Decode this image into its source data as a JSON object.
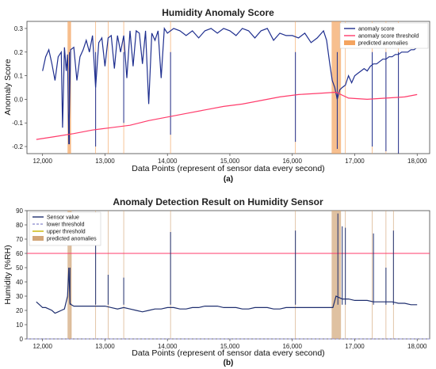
{
  "chart_data": [
    {
      "type": "line",
      "panel_label": "(a)",
      "title": "Humidity Anomaly Score",
      "xlabel": "Data Points (represent of sensor data every second)",
      "ylabel": "Anomaly Score",
      "xlim": [
        11750,
        18200
      ],
      "ylim": [
        -0.23,
        0.33
      ],
      "xticks": [
        12000,
        13000,
        14000,
        15000,
        16000,
        17000,
        18000
      ],
      "xtick_labels": [
        "12,000",
        "13,000",
        "14,000",
        "15,000",
        "16,000",
        "17,000",
        "18,000"
      ],
      "yticks": [
        -0.2,
        -0.1,
        0.0,
        0.1,
        0.2,
        0.3
      ],
      "ytick_labels": [
        "-0.2",
        "-0.1",
        "0.0",
        "0.1",
        "0.2",
        "0.3"
      ],
      "legend": {
        "position": "top-right",
        "entries": [
          "anomaly score",
          "anomaly score threshold",
          "predicted anomalies"
        ]
      },
      "colors": {
        "score": "#1f2f8f",
        "threshold": "#ff3b6b",
        "anomaly": "#f4a460"
      },
      "series": [
        {
          "name": "anomaly score",
          "x": [
            12000,
            12050,
            12100,
            12150,
            12200,
            12250,
            12300,
            12320,
            12350,
            12380,
            12400,
            12420,
            12450,
            12500,
            12550,
            12600,
            12650,
            12700,
            12750,
            12800,
            12850,
            12900,
            12950,
            13000,
            13050,
            13100,
            13150,
            13200,
            13250,
            13300,
            13350,
            13400,
            13450,
            13500,
            13550,
            13600,
            13650,
            13700,
            13750,
            13800,
            13850,
            13900,
            13950,
            14000,
            14100,
            14200,
            14300,
            14400,
            14500,
            14600,
            14700,
            14800,
            14900,
            15000,
            15100,
            15200,
            15300,
            15400,
            15500,
            15600,
            15700,
            15800,
            15900,
            16000,
            16100,
            16200,
            16300,
            16400,
            16500,
            16550,
            16600,
            16640,
            16680,
            16720,
            16760,
            16800,
            16850,
            16900,
            16950,
            17000,
            17050,
            17100,
            17150,
            17200,
            17250,
            17300,
            17350,
            17400,
            17450,
            17500,
            17550,
            17600,
            17650,
            17700,
            17750,
            17800,
            17850,
            17900,
            17950,
            18000
          ],
          "y": [
            0.12,
            0.18,
            0.21,
            0.15,
            0.08,
            0.18,
            0.2,
            -0.12,
            0.22,
            0.12,
            0.19,
            -0.19,
            0.21,
            0.22,
            0.08,
            0.18,
            0.21,
            0.25,
            0.2,
            0.27,
            0.05,
            0.24,
            0.26,
            0.14,
            0.26,
            0.27,
            0.13,
            0.27,
            0.2,
            0.27,
            0.09,
            0.29,
            0.14,
            0.29,
            0.28,
            0.15,
            0.29,
            -0.02,
            0.28,
            0.25,
            0.29,
            0.09,
            0.3,
            0.28,
            0.3,
            0.29,
            0.27,
            0.29,
            0.26,
            0.29,
            0.3,
            0.28,
            0.3,
            0.29,
            0.27,
            0.3,
            0.29,
            0.26,
            0.29,
            0.3,
            0.25,
            0.28,
            0.27,
            0.27,
            0.26,
            0.28,
            0.24,
            0.26,
            0.29,
            0.25,
            0.15,
            0.08,
            0.05,
            0.0,
            0.04,
            0.05,
            0.06,
            0.1,
            0.07,
            0.1,
            0.11,
            0.12,
            0.13,
            0.12,
            0.14,
            0.15,
            0.15,
            0.16,
            0.17,
            0.17,
            0.18,
            0.18,
            0.19,
            0.19,
            0.2,
            0.2,
            0.2,
            0.21,
            0.21,
            0.22
          ]
        },
        {
          "name": "anomaly score threshold",
          "x": [
            11900,
            12200,
            12500,
            12800,
            13100,
            13400,
            13700,
            14000,
            14300,
            14600,
            14900,
            15200,
            15500,
            15800,
            16100,
            16400,
            16700,
            16900,
            17200,
            17500,
            17800,
            18000
          ],
          "y": [
            -0.17,
            -0.158,
            -0.145,
            -0.13,
            -0.12,
            -0.11,
            -0.09,
            -0.075,
            -0.06,
            -0.045,
            -0.03,
            -0.02,
            -0.005,
            0.01,
            0.02,
            0.025,
            0.03,
            0.005,
            0.0,
            0.005,
            0.01,
            0.02
          ]
        }
      ],
      "score_spikes": [
        {
          "x": 12430,
          "y": -0.19
        },
        {
          "x": 12850,
          "y": -0.2
        },
        {
          "x": 13300,
          "y": -0.1
        },
        {
          "x": 14050,
          "y": -0.15
        },
        {
          "x": 16050,
          "y": -0.18
        },
        {
          "x": 16720,
          "y": -0.21
        },
        {
          "x": 17280,
          "y": -0.2
        },
        {
          "x": 17500,
          "y": -0.22
        },
        {
          "x": 17700,
          "y": -0.23
        }
      ],
      "anomaly_regions": [
        {
          "x0": 12400,
          "x1": 12450
        },
        {
          "x0": 16630,
          "x1": 16780
        }
      ],
      "anomaly_lines": [
        12450,
        12850,
        13050,
        13300,
        14050,
        16050,
        16850,
        17280,
        17500,
        17700
      ]
    },
    {
      "type": "line",
      "panel_label": "(b)",
      "title": "Anomaly Detection Result on Humidity Sensor",
      "xlabel": "Data Points (represent of sensor data every second)",
      "ylabel": "Humidity (%RH)",
      "xlim": [
        11750,
        18200
      ],
      "ylim": [
        0,
        90
      ],
      "xticks": [
        12000,
        13000,
        14000,
        15000,
        16000,
        17000,
        18000
      ],
      "xtick_labels": [
        "12,000",
        "13,000",
        "14,000",
        "15,000",
        "16,000",
        "17,000",
        "18,000"
      ],
      "yticks": [
        0,
        10,
        20,
        30,
        40,
        50,
        60,
        70,
        80,
        90
      ],
      "ytick_labels": [
        "0",
        "10",
        "20",
        "30",
        "40",
        "50",
        "60",
        "70",
        "80",
        "90"
      ],
      "legend": {
        "position": "top-left",
        "entries": [
          "Sensor value",
          "lower threshold",
          "upper threshold",
          "predicted anomalies"
        ]
      },
      "colors": {
        "sensor": "#1f2f6f",
        "lower": "#8888cc",
        "upper": "#ff3b6b",
        "anomaly": "#d2a679"
      },
      "upper_threshold": 60,
      "lower_threshold": 0,
      "series": [
        {
          "name": "Sensor value",
          "x": [
            11900,
            11950,
            12000,
            12050,
            12100,
            12150,
            12200,
            12250,
            12300,
            12350,
            12400,
            12420,
            12440,
            12460,
            12500,
            12600,
            12700,
            12800,
            12900,
            13000,
            13100,
            13200,
            13300,
            13400,
            13500,
            13600,
            13700,
            13800,
            13900,
            14000,
            14100,
            14200,
            14300,
            14400,
            14500,
            14600,
            14700,
            14800,
            14900,
            15000,
            15100,
            15200,
            15300,
            15400,
            15500,
            15600,
            15700,
            15800,
            15900,
            16000,
            16100,
            16200,
            16300,
            16400,
            16500,
            16600,
            16650,
            16700,
            16750,
            16800,
            16900,
            17000,
            17100,
            17200,
            17300,
            17400,
            17500,
            17600,
            17700,
            17800,
            17900,
            18000
          ],
          "y": [
            26,
            24,
            22,
            22,
            21,
            20,
            18,
            19,
            20,
            21,
            30,
            50,
            25,
            24,
            23,
            23,
            23,
            23,
            23,
            23,
            22,
            21,
            22,
            21,
            20,
            19,
            20,
            21,
            21,
            22,
            22,
            21,
            21,
            22,
            22,
            23,
            23,
            23,
            22,
            22,
            22,
            21,
            21,
            22,
            22,
            22,
            21,
            21,
            22,
            22,
            22,
            22,
            22,
            22,
            22,
            22,
            22,
            30,
            29,
            28,
            28,
            27,
            27,
            27,
            26,
            26,
            26,
            26,
            25,
            25,
            24,
            24
          ]
        }
      ],
      "spikes": [
        {
          "x": 12440,
          "y": 50
        },
        {
          "x": 12850,
          "y": 88
        },
        {
          "x": 13050,
          "y": 45
        },
        {
          "x": 13300,
          "y": 43
        },
        {
          "x": 14050,
          "y": 75
        },
        {
          "x": 16050,
          "y": 76
        },
        {
          "x": 16730,
          "y": 88
        },
        {
          "x": 16800,
          "y": 79
        },
        {
          "x": 16850,
          "y": 78
        },
        {
          "x": 17300,
          "y": 74
        },
        {
          "x": 17500,
          "y": 50
        },
        {
          "x": 17620,
          "y": 76
        }
      ],
      "anomaly_regions": [
        {
          "x0": 12400,
          "x1": 12460
        },
        {
          "x0": 16630,
          "x1": 16780
        }
      ],
      "anomaly_lines": [
        12460,
        12850,
        13050,
        13300,
        14050,
        16050,
        16850,
        17280,
        17500,
        17620
      ]
    }
  ]
}
